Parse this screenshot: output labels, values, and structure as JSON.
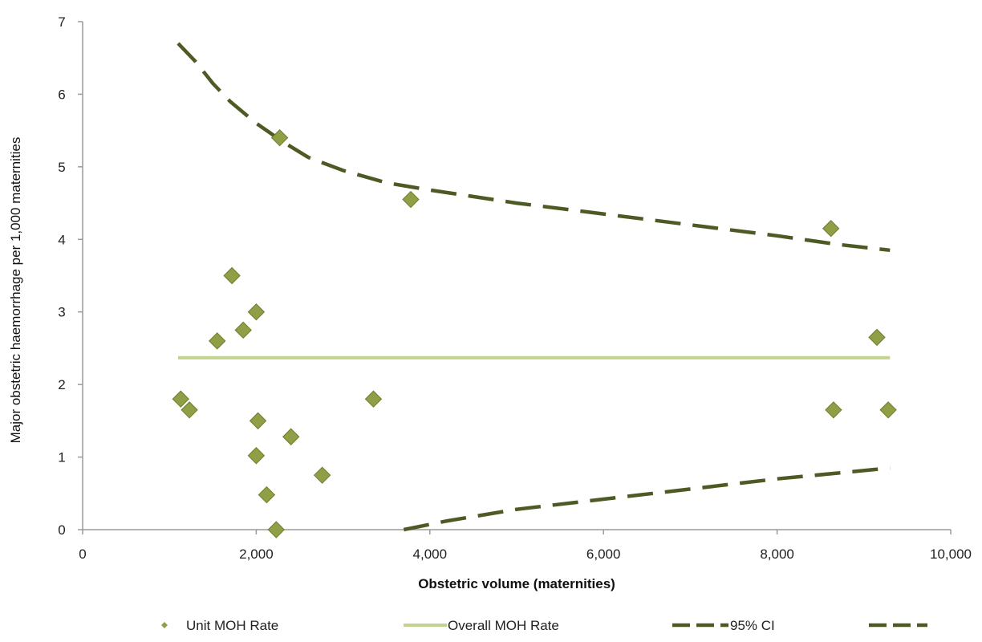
{
  "chart_data": {
    "type": "scatter",
    "title": "",
    "xlabel": "Obstetric volume (maternities)",
    "ylabel": "Major obstetric haemorrhage per 1,000  maternities",
    "xlim": [
      0,
      10000
    ],
    "ylim": [
      0,
      7
    ],
    "x_ticks": [
      0,
      2000,
      4000,
      6000,
      8000,
      10000
    ],
    "x_tick_labels": [
      "0",
      "2,000",
      "4,000",
      "6,000",
      "8,000",
      "10,000"
    ],
    "y_ticks": [
      0,
      1,
      2,
      3,
      4,
      5,
      6,
      7
    ],
    "y_tick_labels": [
      "0",
      "1",
      "2",
      "3",
      "4",
      "5",
      "6",
      "7"
    ],
    "grid": false,
    "legend_position": "bottom",
    "series": [
      {
        "name": "Unit MOH Rate",
        "kind": "scatter",
        "color": "#8f9f45",
        "x": [
          1130,
          1230,
          1550,
          1720,
          1850,
          2000,
          2020,
          2000,
          2120,
          2230,
          2270,
          2400,
          2760,
          3350,
          3780,
          8620,
          8650,
          9150,
          9280
        ],
        "y": [
          1.8,
          1.65,
          2.6,
          3.5,
          2.75,
          3.0,
          1.5,
          1.02,
          0.48,
          0.0,
          5.4,
          1.28,
          0.75,
          1.8,
          4.55,
          4.15,
          1.65,
          2.65,
          1.65
        ]
      },
      {
        "name": "Overall MOH Rate",
        "kind": "line",
        "color": "#c2d38f",
        "x": [
          1100,
          9300
        ],
        "y": [
          2.37,
          2.37
        ]
      },
      {
        "name": "95% CI",
        "kind": "dashed",
        "color": "#4d5a24",
        "x": [
          1100,
          1300,
          1500,
          1700,
          2000,
          2300,
          2600,
          3000,
          3500,
          4000,
          5000,
          6000,
          7000,
          8000,
          8700,
          9300
        ],
        "y": [
          6.7,
          6.45,
          6.15,
          5.9,
          5.6,
          5.35,
          5.13,
          4.95,
          4.78,
          4.68,
          4.5,
          4.35,
          4.2,
          4.05,
          3.93,
          3.85
        ]
      },
      {
        "name": "",
        "kind": "dashed",
        "color": "#4d5a24",
        "x": [
          3700,
          4200,
          5000,
          6000,
          7000,
          8000,
          8700,
          9300
        ],
        "y": [
          0.0,
          0.12,
          0.28,
          0.42,
          0.56,
          0.7,
          0.78,
          0.85
        ]
      }
    ]
  }
}
